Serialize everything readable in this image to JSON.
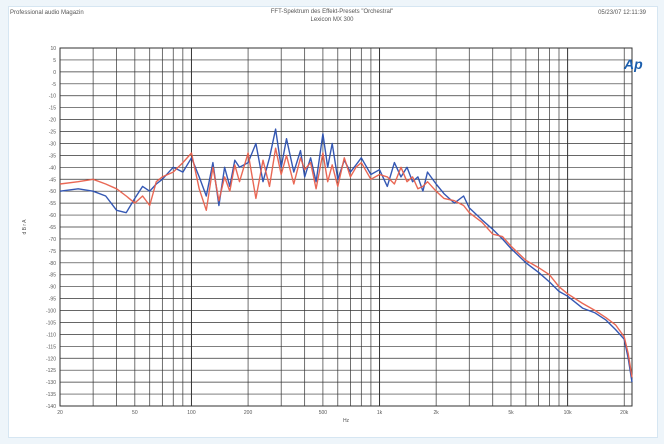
{
  "header": {
    "left": "Professional audio Magazin",
    "title": "FFT-Spektrum des Effekt-Presets \"Orchestral\"",
    "subtitle": "Lexicon MX 300",
    "right": "05/23/07 12:11:39"
  },
  "logo": {
    "text": "Ap",
    "color": "#1c5fae"
  },
  "colors": {
    "series_blue": "#2a4fb0",
    "series_red": "#e8604c",
    "grid": "#333333",
    "grid_minor": "#999999"
  },
  "chart_data": {
    "type": "line",
    "title": "FFT-Spektrum des Effekt-Presets \"Orchestral\"",
    "xlabel": "Hz",
    "ylabel": "d B r A",
    "xscale": "log",
    "xlim": [
      20,
      22000
    ],
    "ylim": [
      -140,
      10
    ],
    "x_ticks": [
      20,
      50,
      100,
      200,
      500,
      1000,
      2000,
      5000,
      10000,
      20000
    ],
    "x_tick_labels": [
      "20",
      "50",
      "100",
      "200",
      "500",
      "1k",
      "2k",
      "5k",
      "10k",
      "20k"
    ],
    "y_ticks": [
      10,
      5,
      0,
      -5,
      -10,
      -15,
      -20,
      -25,
      -30,
      -35,
      -40,
      -45,
      -50,
      -55,
      -60,
      -65,
      -70,
      -75,
      -80,
      -85,
      -90,
      -95,
      -100,
      -105,
      -110,
      -115,
      -120,
      -125,
      -130,
      -135,
      -140
    ],
    "grid": true,
    "series": [
      {
        "color": "#2a4fb0",
        "x": [
          20,
          25,
          30,
          35,
          40,
          45,
          50,
          55,
          60,
          65,
          70,
          80,
          90,
          100,
          110,
          120,
          130,
          140,
          150,
          160,
          170,
          180,
          200,
          220,
          240,
          260,
          280,
          300,
          320,
          350,
          380,
          400,
          430,
          460,
          500,
          530,
          560,
          600,
          650,
          700,
          750,
          800,
          900,
          1000,
          1100,
          1200,
          1300,
          1400,
          1500,
          1600,
          1700,
          1800,
          2000,
          2200,
          2500,
          2800,
          3000,
          3500,
          4000,
          4500,
          5000,
          6000,
          7000,
          8000,
          9000,
          10000,
          12000,
          14000,
          16000,
          18000,
          20000,
          21000,
          22000
        ],
        "y": [
          -50,
          -49,
          -50,
          -52,
          -58,
          -59,
          -53,
          -48,
          -50,
          -47,
          -45,
          -40,
          -42,
          -36,
          -44,
          -52,
          -38,
          -56,
          -40,
          -48,
          -37,
          -40,
          -38,
          -30,
          -46,
          -36,
          -24,
          -40,
          -28,
          -42,
          -33,
          -44,
          -36,
          -46,
          -26,
          -40,
          -30,
          -45,
          -37,
          -42,
          -39,
          -36,
          -43,
          -41,
          -48,
          -38,
          -44,
          -40,
          -46,
          -44,
          -50,
          -42,
          -47,
          -51,
          -55,
          -52,
          -57,
          -62,
          -66,
          -70,
          -74,
          -80,
          -84,
          -88,
          -92,
          -94,
          -99,
          -101,
          -104,
          -108,
          -112,
          -120,
          -130
        ]
      },
      {
        "color": "#e8604c",
        "x": [
          20,
          25,
          30,
          35,
          40,
          45,
          50,
          55,
          60,
          65,
          70,
          80,
          90,
          100,
          110,
          120,
          130,
          140,
          150,
          160,
          170,
          180,
          200,
          220,
          240,
          260,
          280,
          300,
          320,
          350,
          380,
          400,
          430,
          460,
          500,
          530,
          560,
          600,
          650,
          700,
          750,
          800,
          900,
          1000,
          1100,
          1200,
          1300,
          1400,
          1500,
          1600,
          1700,
          1800,
          2000,
          2200,
          2500,
          2800,
          3000,
          3500,
          4000,
          4500,
          5000,
          6000,
          7000,
          8000,
          9000,
          10000,
          12000,
          14000,
          16000,
          18000,
          20000,
          21000,
          22000
        ],
        "y": [
          -47,
          -46,
          -45,
          -47,
          -49,
          -52,
          -55,
          -52,
          -56,
          -46,
          -44,
          -42,
          -38,
          -34,
          -49,
          -58,
          -40,
          -54,
          -44,
          -50,
          -39,
          -46,
          -34,
          -53,
          -37,
          -48,
          -32,
          -43,
          -35,
          -47,
          -36,
          -41,
          -38,
          -49,
          -34,
          -46,
          -39,
          -48,
          -36,
          -44,
          -40,
          -38,
          -45,
          -43,
          -44,
          -47,
          -40,
          -46,
          -44,
          -49,
          -48,
          -46,
          -50,
          -53,
          -54,
          -56,
          -59,
          -63,
          -68,
          -69,
          -73,
          -79,
          -82,
          -85,
          -90,
          -93,
          -97,
          -100,
          -103,
          -106,
          -111,
          -118,
          -128
        ]
      }
    ]
  }
}
